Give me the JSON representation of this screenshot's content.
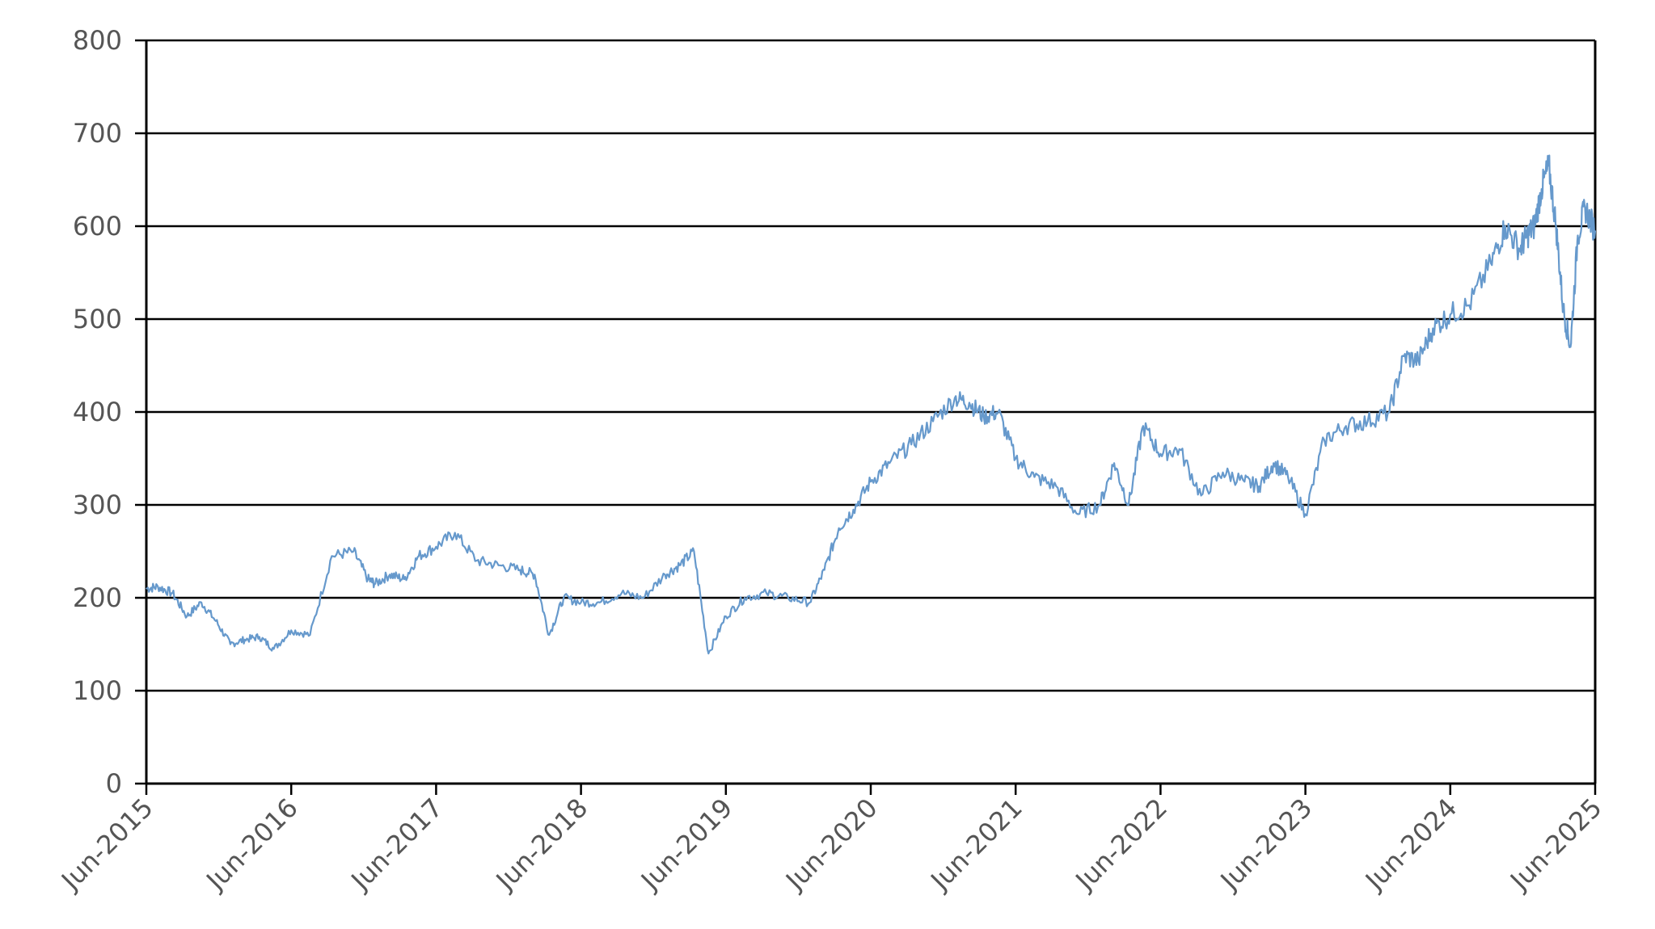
{
  "chart_data": {
    "type": "line",
    "title": "",
    "xlabel": "",
    "ylabel": "",
    "ylim": [
      0,
      800
    ],
    "yticks": [
      "0",
      "100",
      "200",
      "300",
      "400",
      "500",
      "600",
      "700",
      "800"
    ],
    "xticks": [
      "Jun-2015",
      "Jun-2016",
      "Jun-2017",
      "Jun-2018",
      "Jun-2019",
      "Jun-2020",
      "Jun-2021",
      "Jun-2022",
      "Jun-2023",
      "Jun-2024",
      "Jun-2025"
    ],
    "grid": "horizontal",
    "legend": "none",
    "line_color": "#6699cc",
    "grid_color": "#000000",
    "series": [
      {
        "x": [
          2015.42,
          2015.5,
          2015.6,
          2015.7,
          2015.8,
          2015.9,
          2016.0,
          2016.1,
          2016.2,
          2016.3,
          2016.42,
          2016.55,
          2016.7,
          2016.85,
          2016.95,
          2017.0,
          2017.1,
          2017.2,
          2017.3,
          2017.42,
          2017.55,
          2017.7,
          2017.85,
          2018.0,
          2018.1,
          2018.2,
          2018.3,
          2018.42,
          2018.55,
          2018.7,
          2018.85,
          2019.0,
          2019.1,
          2019.2,
          2019.3,
          2019.42,
          2019.55,
          2019.7,
          2019.85,
          2020.0,
          2020.1,
          2020.2,
          2020.3,
          2020.42,
          2020.55,
          2020.7,
          2020.85,
          2021.0,
          2021.1,
          2021.2,
          2021.3,
          2021.42,
          2021.55,
          2021.7,
          2021.85,
          2022.0,
          2022.1,
          2022.2,
          2022.3,
          2022.42,
          2022.55,
          2022.7,
          2022.85,
          2023.0,
          2023.1,
          2023.2,
          2023.3,
          2023.42,
          2023.55,
          2023.7,
          2023.85,
          2024.0,
          2024.1,
          2024.2,
          2024.3,
          2024.42,
          2024.55,
          2024.7,
          2024.8,
          2024.9,
          2024.95,
          2025.0,
          2025.05,
          2025.1,
          2025.15,
          2025.2,
          2025.25,
          2025.3,
          2025.35,
          2025.42
        ],
        "y": [
          210,
          212,
          205,
          180,
          195,
          175,
          150,
          155,
          158,
          145,
          165,
          160,
          245,
          250,
          220,
          215,
          225,
          220,
          245,
          255,
          270,
          240,
          235,
          230,
          225,
          160,
          200,
          195,
          195,
          205,
          200,
          225,
          235,
          250,
          140,
          180,
          200,
          205,
          200,
          195,
          230,
          275,
          295,
          325,
          345,
          365,
          390,
          415,
          410,
          395,
          400,
          350,
          330,
          320,
          290,
          300,
          345,
          300,
          385,
          355,
          360,
          310,
          335,
          325,
          320,
          345,
          330,
          290,
          370,
          385,
          390,
          400,
          460,
          455,
          490,
          505,
          515,
          560,
          600,
          575,
          590,
          600,
          640,
          665,
          600,
          510,
          470,
          590,
          620,
          595
        ]
      }
    ]
  }
}
